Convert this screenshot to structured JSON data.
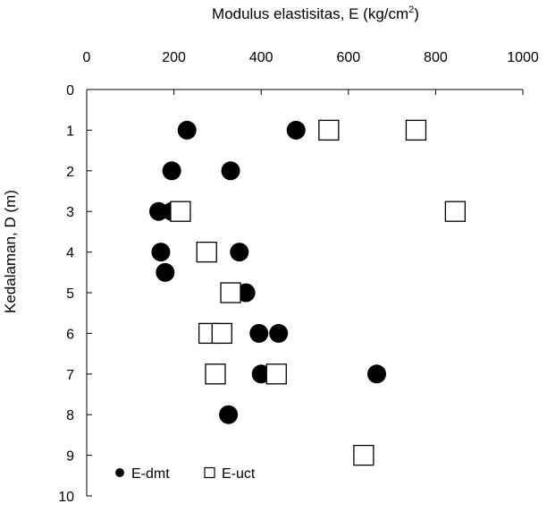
{
  "chart_data": {
    "type": "scatter",
    "xlabel": "Modulus elastisitas, E (kg/cm",
    "xlabel_superscript": "2",
    "xlabel_close": ")",
    "ylabel": "Kedalaman, D (m)",
    "xlim": [
      0,
      1000
    ],
    "ylim": [
      0,
      10
    ],
    "x_axis_position": "top",
    "y_inverted": true,
    "grid": false,
    "legend_position": "bottom-left",
    "x_ticks": [
      0,
      200,
      400,
      600,
      800,
      1000
    ],
    "y_ticks": [
      0,
      1,
      2,
      3,
      4,
      5,
      6,
      7,
      8,
      9,
      10
    ],
    "series": [
      {
        "name": "E-dmt",
        "marker": "filled-circle",
        "color": "#000000",
        "points": [
          {
            "x": 230,
            "y": 1
          },
          {
            "x": 480,
            "y": 1
          },
          {
            "x": 195,
            "y": 2
          },
          {
            "x": 330,
            "y": 2
          },
          {
            "x": 165,
            "y": 3
          },
          {
            "x": 195,
            "y": 3
          },
          {
            "x": 350,
            "y": 4
          },
          {
            "x": 170,
            "y": 4
          },
          {
            "x": 180,
            "y": 4.5
          },
          {
            "x": 365,
            "y": 5
          },
          {
            "x": 395,
            "y": 6
          },
          {
            "x": 440,
            "y": 6
          },
          {
            "x": 400,
            "y": 7
          },
          {
            "x": 665,
            "y": 7
          },
          {
            "x": 325,
            "y": 8
          }
        ]
      },
      {
        "name": "E-uct",
        "marker": "open-square",
        "color": "#000000",
        "points": [
          {
            "x": 555,
            "y": 1
          },
          {
            "x": 755,
            "y": 1
          },
          {
            "x": 215,
            "y": 3
          },
          {
            "x": 845,
            "y": 3
          },
          {
            "x": 275,
            "y": 4
          },
          {
            "x": 330,
            "y": 5
          },
          {
            "x": 280,
            "y": 6
          },
          {
            "x": 310,
            "y": 6
          },
          {
            "x": 295,
            "y": 7
          },
          {
            "x": 435,
            "y": 7
          },
          {
            "x": 635,
            "y": 9
          }
        ]
      }
    ]
  }
}
